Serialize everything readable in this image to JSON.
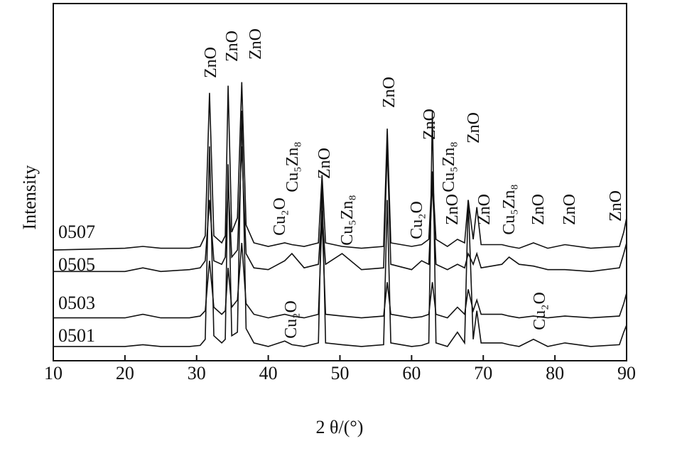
{
  "chart_data": {
    "type": "line",
    "xlabel": "2 θ/(°)",
    "ylabel": "Intensity",
    "xlim": [
      10,
      90
    ],
    "ylim": [
      0,
      100
    ],
    "xticks": [
      10,
      20,
      30,
      40,
      50,
      60,
      70,
      80,
      90
    ],
    "x": [
      10,
      20,
      22.5,
      25,
      29,
      30.5,
      31.2,
      31.8,
      32.4,
      33.5,
      34.0,
      34.4,
      34.9,
      35.7,
      36.3,
      36.9,
      38,
      40,
      42.3,
      43.3,
      45,
      47.0,
      47.5,
      48.0,
      50.3,
      53,
      56.1,
      56.6,
      57.1,
      60,
      61.4,
      62.4,
      62.9,
      63.4,
      65,
      66.4,
      67.4,
      67.9,
      68.6,
      69.1,
      69.7,
      72.6,
      73.6,
      75,
      77.0,
      79,
      81.4,
      85,
      89.0,
      89.6,
      90
    ],
    "series": [
      {
        "name": "0507",
        "color": "#111111",
        "values": [
          31,
          31.5,
          32,
          31.5,
          31.5,
          32,
          35,
          75,
          35,
          33,
          35,
          77,
          36,
          40,
          78,
          38,
          33,
          32,
          33,
          32.5,
          32,
          33,
          52,
          33,
          32,
          31.5,
          32,
          65,
          33,
          32,
          32.5,
          34,
          53,
          34,
          32,
          34,
          33,
          45,
          34,
          43,
          32.5,
          32.5,
          32,
          31.5,
          33,
          31.5,
          32.5,
          31.5,
          32,
          36,
          40
        ]
      },
      {
        "name": "0505",
        "color": "#111111",
        "values": [
          25,
          25,
          26,
          25,
          25.5,
          26,
          28,
          45,
          28,
          27,
          29,
          50,
          29,
          31,
          60,
          30,
          26,
          25.5,
          28,
          30,
          26,
          27,
          42,
          27,
          30,
          25.5,
          26,
          60,
          27,
          25.5,
          28,
          27,
          50,
          27,
          25.5,
          27,
          26,
          30,
          27,
          30,
          26,
          27,
          29,
          27,
          26.5,
          25.5,
          25.5,
          25,
          26,
          30,
          33
        ]
      },
      {
        "name": "0503",
        "color": "#111111",
        "values": [
          12,
          12,
          13,
          12,
          12,
          12.5,
          14,
          28,
          15,
          13,
          14,
          26,
          15,
          17,
          33,
          16,
          13,
          12,
          13,
          12.5,
          12,
          13,
          40,
          13,
          12.5,
          12,
          12.5,
          22,
          13,
          12,
          12.3,
          13,
          22,
          13,
          12,
          15,
          13,
          20,
          14,
          17,
          13,
          13,
          12.5,
          12,
          12.5,
          12,
          12.5,
          12,
          12.5,
          16,
          19
        ]
      },
      {
        "name": "0501",
        "color": "#111111",
        "values": [
          4,
          4,
          4.5,
          4,
          4,
          4.3,
          6,
          60,
          7,
          5,
          6,
          55,
          7,
          8,
          70,
          9,
          5,
          4,
          5.5,
          4.5,
          4,
          5,
          50,
          5,
          4.5,
          4,
          4.5,
          45,
          5,
          4,
          4.3,
          5,
          70,
          5,
          4,
          8,
          5,
          45,
          6,
          14,
          5,
          5,
          4.5,
          4,
          6,
          4,
          5,
          4,
          4.5,
          8,
          10
        ]
      }
    ],
    "annotations": [
      "ZnO",
      "ZnO",
      "ZnO",
      "Cu₂O",
      "Cu₅Zn₈",
      "ZnO",
      "Cu₅Zn₈",
      "ZnO",
      "Cu₂O",
      "ZnO",
      "Cu₅Zn₈",
      "ZnO",
      "ZnO",
      "ZnO",
      "Cu₅Zn₈",
      "ZnO",
      "ZnO",
      "ZnO",
      "Cu₂O",
      "Cu₂O"
    ]
  }
}
